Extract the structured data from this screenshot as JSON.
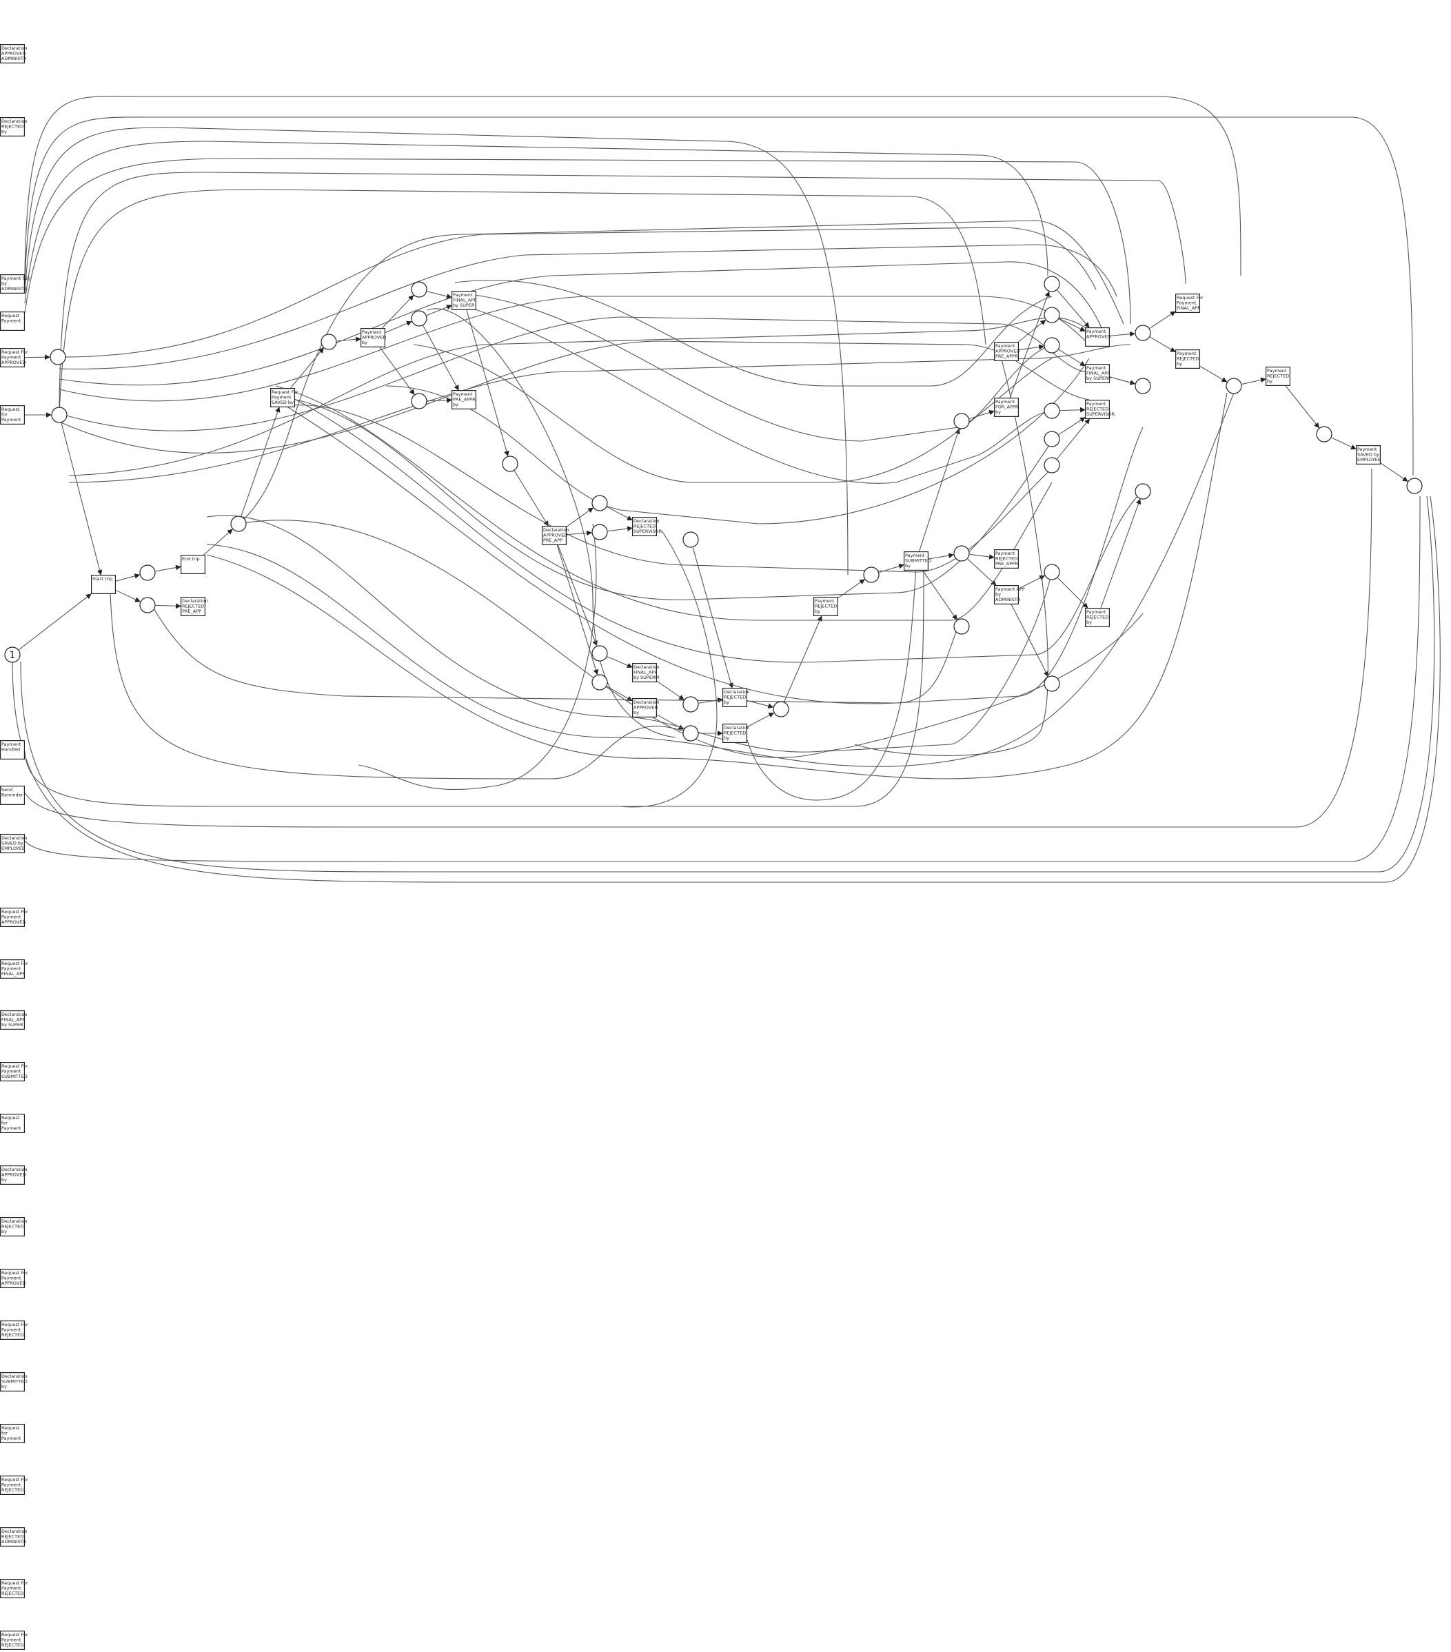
{
  "diagram": {
    "type": "petri-net",
    "initial_marking": "1",
    "transitions": [
      {
        "id": "t_decl_appr_admin",
        "lines": [
          "Declaration",
          "APPROVED",
          "ADMINISTR"
        ]
      },
      {
        "id": "t_decl_rej_by_top",
        "lines": [
          "Declaration",
          "REJECTED",
          "by"
        ]
      },
      {
        "id": "t_pay_rej_admin",
        "lines": [
          "Payment REJ",
          "by",
          "ADMINISTR"
        ]
      },
      {
        "id": "t_req_pay_a",
        "lines": [
          "Request",
          "Payment"
        ]
      },
      {
        "id": "t_req_for_pay_appr_left",
        "lines": [
          "Request For",
          "Payment",
          "APPROVED"
        ]
      },
      {
        "id": "t_req_for_pay_left",
        "lines": [
          "Request",
          "for",
          "Payment"
        ]
      },
      {
        "id": "t_pay_handled",
        "lines": [
          "Payment",
          "Handled"
        ]
      },
      {
        "id": "t_send_reminder",
        "lines": [
          "Send",
          "Reminder"
        ]
      },
      {
        "id": "t_decl_saved_emp",
        "lines": [
          "Declaration",
          "SAVED by",
          "EMPLOYEE"
        ]
      },
      {
        "id": "t_start",
        "lines": [
          "Start trip"
        ]
      },
      {
        "id": "t_end",
        "lines": [
          "End trip"
        ]
      },
      {
        "id": "t_decl_rej_pre",
        "lines": [
          "Declaration",
          "REJECTED",
          "PRE_APP"
        ]
      },
      {
        "id": "t_rfp_saved",
        "lines": [
          "Request For",
          "Payment",
          "SAVED by"
        ]
      },
      {
        "id": "t_pay_approved_by",
        "lines": [
          "Payment",
          "APPROVED",
          "by"
        ]
      },
      {
        "id": "t_pay_final_super",
        "lines": [
          "Payment",
          "FINAL_APP",
          "by SUPER"
        ]
      },
      {
        "id": "t_pay_pre_app",
        "lines": [
          "Payment",
          "PRE_APPR",
          "by"
        ]
      },
      {
        "id": "t_decl_appr_pre",
        "lines": [
          "Declaration",
          "APPROVED",
          "PRE_APP"
        ]
      },
      {
        "id": "t_decl_rej_super",
        "lines": [
          "Declaration",
          "REJECTED",
          "SUPERVISOR"
        ]
      },
      {
        "id": "t_decl_final_super",
        "lines": [
          "Declaration",
          "FINAL_APP",
          "by SUPERVI"
        ]
      },
      {
        "id": "t_decl_appr_by",
        "lines": [
          "Declaration",
          "APPROVED",
          "by"
        ]
      },
      {
        "id": "t_decl_rej_by",
        "lines": [
          "Declaration",
          "REJECTED",
          "by"
        ]
      },
      {
        "id": "t_decl_rej_by2",
        "lines": [
          "Declaration",
          "REJECTED",
          "by"
        ]
      },
      {
        "id": "t_pay_rej_by",
        "lines": [
          "Payment",
          "REJECTED",
          "by"
        ]
      },
      {
        "id": "t_pay_submitted",
        "lines": [
          "Payment",
          "SUBMITTED",
          "by"
        ]
      },
      {
        "id": "t_pay_appr_pre",
        "lines": [
          "Payment",
          "APPROVED",
          "PRE_APPR"
        ]
      },
      {
        "id": "t_pay_for_app",
        "lines": [
          "Payment",
          "FOR_APPR",
          "by"
        ]
      },
      {
        "id": "t_pay_rej_pre",
        "lines": [
          "Payment",
          "REJECTED",
          "PRE_APPR"
        ]
      },
      {
        "id": "t_pay_appr_admin",
        "lines": [
          "Payment APP",
          "by",
          "ADMINISTR"
        ]
      },
      {
        "id": "t_pay_approved",
        "lines": [
          "Payment",
          "APPROVED"
        ]
      },
      {
        "id": "t_pay_final_super2",
        "lines": [
          "Payment",
          "FINAL_APP",
          "by SUPERV"
        ]
      },
      {
        "id": "t_pay_rej_super",
        "lines": [
          "Payment",
          "REJECTED",
          "SUPERVISOR"
        ]
      },
      {
        "id": "t_pay_rej_by2",
        "lines": [
          "Payment",
          "REJECTED",
          "by"
        ]
      },
      {
        "id": "t_rfp_final",
        "lines": [
          "Request For",
          "Payment",
          "FINAL_APP"
        ]
      },
      {
        "id": "t_rfp_rej",
        "lines": [
          "Payment",
          "REJECTED",
          "by"
        ]
      },
      {
        "id": "t_pay_rej_by3",
        "lines": [
          "Payment",
          "REJECTED",
          "by"
        ]
      },
      {
        "id": "t_pay_saved_emp",
        "lines": [
          "Payment",
          "SAVED by",
          "EMPLOYEE"
        ]
      },
      {
        "id": "t_rfp_approved",
        "lines": [
          "Request For",
          "Payment",
          "APPROVED"
        ]
      },
      {
        "id": "t_rfp_final_app",
        "lines": [
          "Request For",
          "Payment",
          "FINAL_APP"
        ]
      },
      {
        "id": "t_decl_final_super_l",
        "lines": [
          "Declaration",
          "FINAL_APP",
          "by SUPER"
        ]
      },
      {
        "id": "t_rfp_submitted",
        "lines": [
          "Request For",
          "Payment",
          "SUBMITTED"
        ]
      },
      {
        "id": "t_req_for_pay_l2",
        "lines": [
          "Request",
          "for",
          "Payment"
        ]
      },
      {
        "id": "t_decl_approved_by",
        "lines": [
          "Declaration",
          "APPROVED",
          "by"
        ]
      },
      {
        "id": "t_decl_rejected_by",
        "lines": [
          "Declaration",
          "REJECTED",
          "by"
        ]
      },
      {
        "id": "t_rfp_approved2",
        "lines": [
          "Request For",
          "Payment",
          "APPROVED"
        ]
      },
      {
        "id": "t_rfp_rejected",
        "lines": [
          "Request For",
          "Payment",
          "REJECTED"
        ]
      },
      {
        "id": "t_decl_submitted",
        "lines": [
          "Declaration",
          "SUBMITTED",
          "by"
        ]
      },
      {
        "id": "t_req_for_pay_l3",
        "lines": [
          "Request",
          "for",
          "Payment"
        ]
      },
      {
        "id": "t_rfp_rejected2",
        "lines": [
          "Request For",
          "Payment",
          "REJECTED"
        ]
      },
      {
        "id": "t_decl_rej_admin",
        "lines": [
          "Declaration",
          "REJECTED",
          "ADMINISTR"
        ]
      },
      {
        "id": "t_rfp_rejected3",
        "lines": [
          "Request For",
          "Payment",
          "REJECTED"
        ]
      },
      {
        "id": "t_rfp_rejected4",
        "lines": [
          "Request For",
          "Payment",
          "REJECTED"
        ]
      }
    ]
  }
}
